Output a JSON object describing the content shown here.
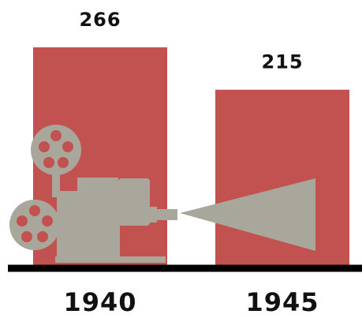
{
  "chart_data": {
    "type": "bar",
    "categories": [
      "1940",
      "1945"
    ],
    "values": [
      266,
      215
    ],
    "color": "#c1524f"
  }
}
